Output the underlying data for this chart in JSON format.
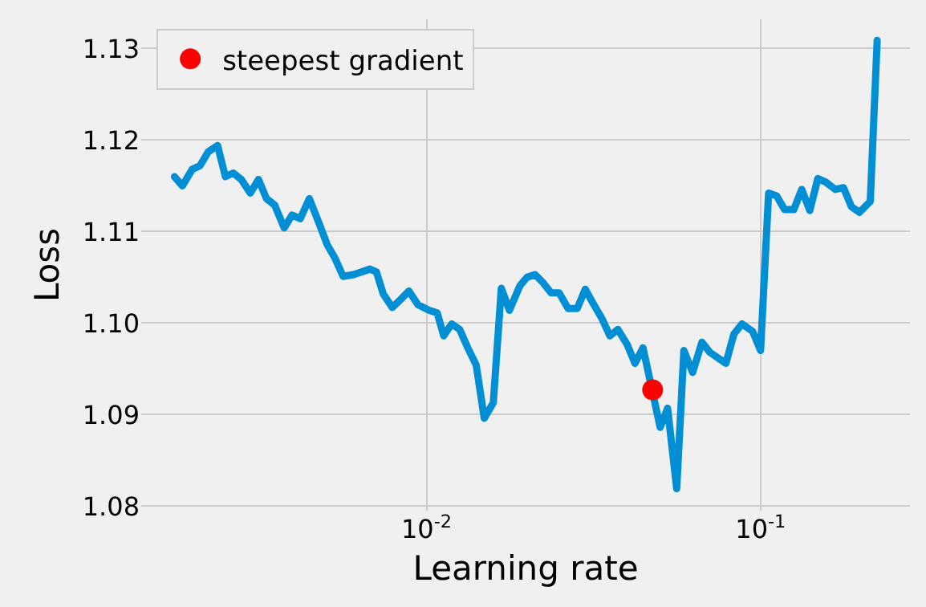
{
  "chart_data": {
    "type": "line",
    "xlabel": "Learning rate",
    "ylabel": "Loss",
    "log": "x",
    "grid": true,
    "legend": "top left",
    "xlim": [
      0.0014,
      0.28
    ],
    "xticks": [
      {
        "value": 0.01,
        "label": "10$^{-2}$"
      },
      {
        "value": 0.1,
        "label": "10$^{-1}$"
      }
    ],
    "ylim": [
      1.0795,
      1.1332
    ],
    "yticks": [
      1.08,
      1.09,
      {
        "value": 1.1,
        "label": "1.10"
      },
      1.11,
      1.12,
      1.13
    ],
    "series": [
      {
        "color": "#008fd5",
        "line_style": "solid",
        "x": [
          0.00176,
          0.00186,
          0.00199,
          0.0021,
          0.00222,
          0.00237,
          0.0025,
          0.00264,
          0.00279,
          0.00297,
          0.00314,
          0.00332,
          0.00351,
          0.00375,
          0.00396,
          0.00419,
          0.00446,
          0.00477,
          0.00504,
          0.00532,
          0.00563,
          0.00606,
          0.00677,
          0.00708,
          0.00742,
          0.0079,
          0.00838,
          0.00886,
          0.00943,
          0.01019,
          0.01077,
          0.01126,
          0.0119,
          0.01257,
          0.01329,
          0.01409,
          0.01489,
          0.01585,
          0.01675,
          0.01771,
          0.01905,
          0.02,
          0.02113,
          0.02234,
          0.0236,
          0.02495,
          0.02654,
          0.02827,
          0.02987,
          0.0317,
          0.0335,
          0.0354,
          0.0374,
          0.03982,
          0.04208,
          0.04447,
          0.05006,
          0.05269,
          0.0561,
          0.05895,
          0.06262,
          0.06675,
          0.07053,
          0.07875,
          0.08323,
          0.08796,
          0.09464,
          0.1,
          0.1057,
          0.1117,
          0.118,
          0.1257,
          0.1328,
          0.1404,
          0.1484,
          0.1568,
          0.1675,
          0.1771,
          0.1872,
          0.1978,
          0.213,
          0.2234
        ],
        "values": [
          1.116,
          1.115,
          1.1168,
          1.1172,
          1.1187,
          1.1194,
          1.116,
          1.1164,
          1.1157,
          1.1142,
          1.1157,
          1.1136,
          1.1129,
          1.1104,
          1.1118,
          1.1114,
          1.1136,
          1.1109,
          1.1086,
          1.1071,
          1.1051,
          1.1053,
          1.1059,
          1.1056,
          1.1032,
          1.1017,
          1.1026,
          1.1035,
          1.102,
          1.1014,
          1.1011,
          1.0986,
          1.0999,
          1.0993,
          1.0973,
          1.0954,
          1.0896,
          1.0913,
          1.1038,
          1.1014,
          1.1041,
          1.105,
          1.1053,
          1.1044,
          1.1033,
          1.1033,
          1.1016,
          1.1016,
          1.1037,
          1.102,
          1.1005,
          1.0986,
          1.0993,
          1.0977,
          1.0956,
          1.0973,
          1.0886,
          1.0907,
          1.0819,
          1.097,
          1.0946,
          1.0979,
          1.0968,
          1.0956,
          1.0988,
          1.0999,
          1.0991,
          1.097,
          1.1142,
          1.1139,
          1.1124,
          1.1124,
          1.1146,
          1.1123,
          1.1158,
          1.1154,
          1.1146,
          1.1148,
          1.1127,
          1.1121,
          1.1133,
          1.1309
        ]
      },
      {
        "type": "scatter",
        "name": "steepest gradient",
        "color": "#ff0000",
        "marker": "circle",
        "x": [
          0.04753
        ],
        "values": [
          1.0927
        ]
      }
    ]
  }
}
